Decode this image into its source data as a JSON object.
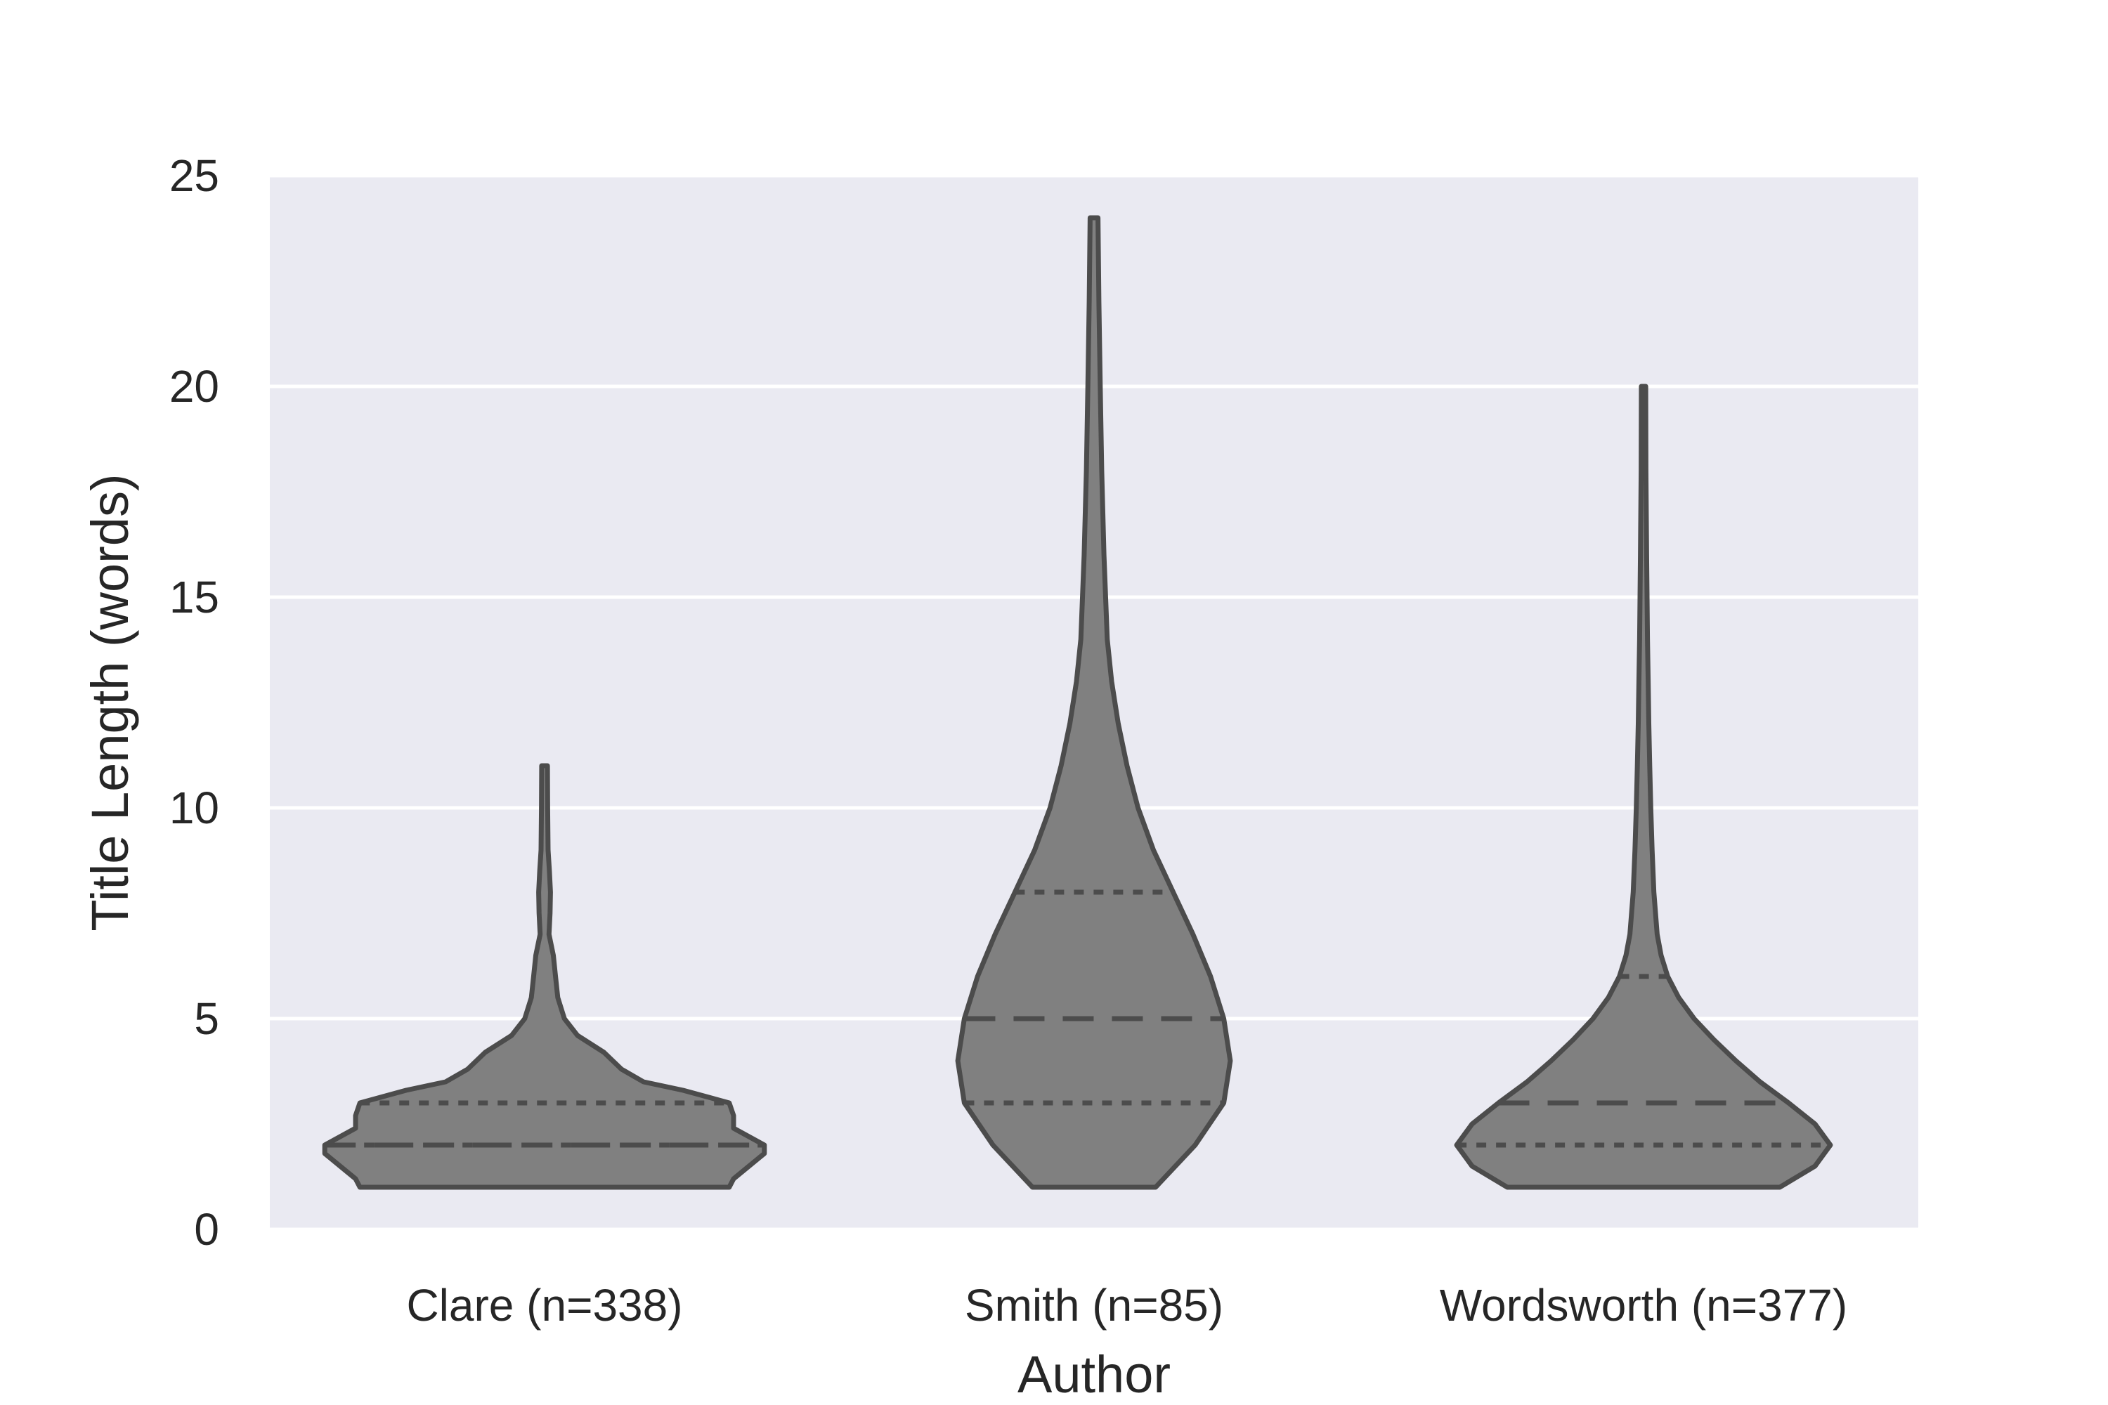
{
  "chart_data": {
    "type": "violin",
    "xlabel": "Author",
    "ylabel": "Title Length (words)",
    "ylim": [
      0,
      25
    ],
    "yticks": [
      0,
      5,
      10,
      15,
      20,
      25
    ],
    "grid": true,
    "inner": "quartile",
    "categories": [
      "Clare (n=338)",
      "Smith (n=85)",
      "Wordsworth (n=377)"
    ],
    "series": [
      {
        "category": "Clare (n=338)",
        "min": 1,
        "q1": 2,
        "median": 2,
        "q3": 3,
        "max": 11,
        "density": [
          [
            1,
            0.84
          ],
          [
            1.2,
            0.86
          ],
          [
            1.5,
            0.93
          ],
          [
            1.8,
            1.0
          ],
          [
            2.0,
            1.0
          ],
          [
            2.2,
            0.93
          ],
          [
            2.4,
            0.86
          ],
          [
            2.7,
            0.86
          ],
          [
            3.0,
            0.84
          ],
          [
            3.3,
            0.63
          ],
          [
            3.5,
            0.45
          ],
          [
            3.8,
            0.35
          ],
          [
            4.2,
            0.27
          ],
          [
            4.6,
            0.15
          ],
          [
            5.0,
            0.09
          ],
          [
            5.5,
            0.06
          ],
          [
            6.0,
            0.05
          ],
          [
            6.5,
            0.04
          ],
          [
            7.0,
            0.02
          ],
          [
            7.5,
            0.025
          ],
          [
            8.0,
            0.027
          ],
          [
            8.5,
            0.022
          ],
          [
            9.0,
            0.016
          ],
          [
            10.0,
            0.014
          ],
          [
            11.0,
            0.013
          ]
        ]
      },
      {
        "category": "Smith (n=85)",
        "min": 1,
        "q1": 3,
        "median": 5,
        "q3": 8,
        "max": 24,
        "density": [
          [
            1,
            0.28
          ],
          [
            2,
            0.46
          ],
          [
            3,
            0.59
          ],
          [
            4,
            0.62
          ],
          [
            5,
            0.59
          ],
          [
            6,
            0.53
          ],
          [
            7,
            0.45
          ],
          [
            8,
            0.36
          ],
          [
            9,
            0.27
          ],
          [
            10,
            0.2
          ],
          [
            11,
            0.15
          ],
          [
            12,
            0.11
          ],
          [
            13,
            0.08
          ],
          [
            14,
            0.06
          ],
          [
            16,
            0.045
          ],
          [
            18,
            0.035
          ],
          [
            20,
            0.028
          ],
          [
            22,
            0.022
          ],
          [
            24,
            0.018
          ]
        ]
      },
      {
        "category": "Wordsworth (n=377)",
        "min": 1,
        "q1": 2,
        "median": 3,
        "q3": 6,
        "max": 20,
        "density": [
          [
            1,
            0.62
          ],
          [
            1.5,
            0.78
          ],
          [
            2,
            0.85
          ],
          [
            2.5,
            0.78
          ],
          [
            3,
            0.66
          ],
          [
            3.5,
            0.53
          ],
          [
            4,
            0.42
          ],
          [
            4.5,
            0.32
          ],
          [
            5,
            0.23
          ],
          [
            5.5,
            0.16
          ],
          [
            6,
            0.11
          ],
          [
            6.5,
            0.08
          ],
          [
            7,
            0.062
          ],
          [
            8,
            0.047
          ],
          [
            9,
            0.039
          ],
          [
            10,
            0.033
          ],
          [
            11,
            0.028
          ],
          [
            12,
            0.024
          ],
          [
            13,
            0.021
          ],
          [
            14,
            0.018
          ],
          [
            16,
            0.014
          ],
          [
            18,
            0.011
          ],
          [
            20,
            0.01
          ]
        ]
      }
    ],
    "colors": {
      "plot_background": "#eaeaf2",
      "gridline": "#ffffff",
      "violin_fill": "#808080",
      "violin_edge": "#4c4c4c",
      "text": "#262626"
    }
  }
}
